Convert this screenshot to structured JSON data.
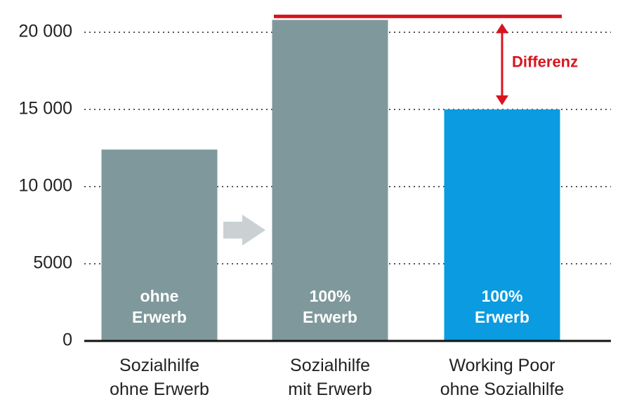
{
  "chart_data": {
    "type": "bar",
    "categories": [
      "Sozialhilfe\nohne Erwerb",
      "Sozialhilfe\nmit Erwerb",
      "Working Poor\nohne Sozialhilfe"
    ],
    "values": [
      12400,
      20800,
      15000
    ],
    "colors": [
      "#7f989b",
      "#7f989b",
      "#0a9be0"
    ],
    "bar_labels": [
      "ohne\nErwerb",
      "100%\nErwerb",
      "100%\nErwerb"
    ],
    "annotation": "Differenz",
    "annotation_color": "#d8141e",
    "ylim": [
      0,
      22000
    ],
    "yticks": [
      0,
      5000,
      {
        "value": 10000,
        "label": "10 000"
      },
      {
        "value": 15000,
        "label": "15 000"
      },
      {
        "value": 20000,
        "label": "20 000"
      }
    ],
    "grid": true
  }
}
